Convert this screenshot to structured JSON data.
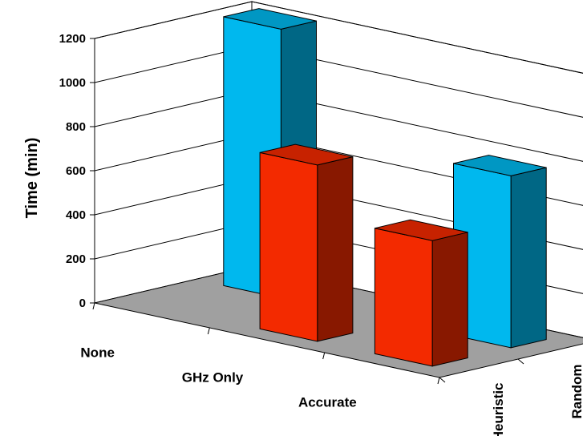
{
  "chart_data": {
    "type": "bar",
    "title": "",
    "xlabel": "",
    "ylabel": "Time (min)",
    "ylim": [
      0,
      1200
    ],
    "yticks": [
      0,
      200,
      400,
      600,
      800,
      1000,
      1200
    ],
    "grid": true,
    "categories": [
      "None",
      "GHz Only",
      "Accurate"
    ],
    "series": [
      {
        "name": "Heuristic",
        "color": "#f32a00",
        "values": [
          null,
          800,
          570
        ]
      },
      {
        "name": "Random",
        "color": "#00b8ee",
        "values": [
          1220,
          null,
          780
        ]
      }
    ],
    "floor_color": "#a0a0a0"
  }
}
